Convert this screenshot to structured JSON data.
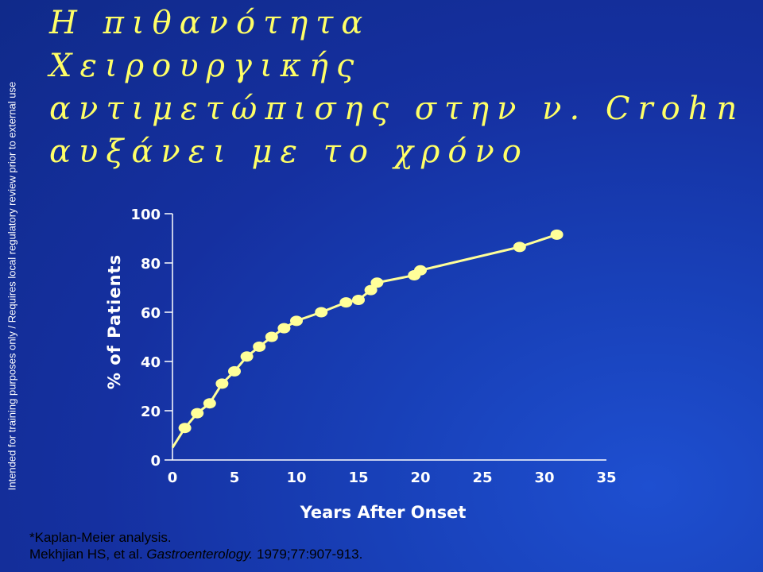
{
  "side_note": "Intended for training purposes only / Requires local regulatory review prior to external use",
  "title_lines": [
    "Η πιθανότητα",
    "Χειρουργικής",
    "αντιμετώπισης στην ν. Crohn",
    "αυξάνει με το χρόνο"
  ],
  "footnote": {
    "line1": "*Kaplan-Meier analysis.",
    "authors": "Mekhjian HS, et al. ",
    "journal": "Gastroenterology.",
    "citation": " 1979;77:907-913."
  },
  "colors": {
    "title": "#ffff66",
    "line": "#ffff99",
    "axis": "#ffffff",
    "background": "#1a3ab0"
  },
  "chart_data": {
    "type": "line",
    "title": "",
    "xlabel": "Years After Onset",
    "ylabel": "% of Patients",
    "xlim": [
      0,
      35
    ],
    "ylim": [
      0,
      100
    ],
    "xticks": [
      0,
      5,
      10,
      15,
      20,
      25,
      30,
      35
    ],
    "yticks": [
      0,
      20,
      40,
      60,
      80,
      100
    ],
    "grid": false,
    "series": [
      {
        "line_start": [
          0,
          5
        ],
        "x": [
          1,
          2,
          3,
          4,
          5,
          6,
          7,
          8,
          9,
          10,
          12,
          14,
          15,
          16,
          16.5,
          19.5,
          20,
          28,
          31
        ],
        "y": [
          13,
          19,
          23,
          31,
          36,
          42,
          46,
          50,
          53.5,
          56.5,
          60,
          64,
          65,
          69,
          72,
          75,
          77,
          86.5,
          91.5
        ]
      }
    ]
  }
}
